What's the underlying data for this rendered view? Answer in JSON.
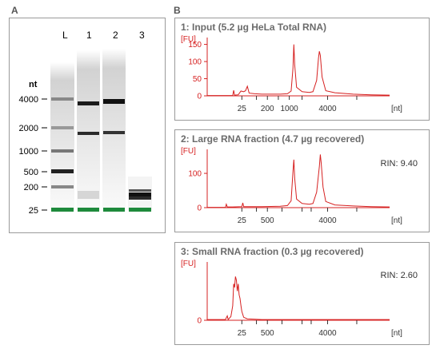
{
  "panels": {
    "a": "A",
    "b": "B"
  },
  "gel": {
    "lanes": [
      "L",
      "1",
      "2",
      "3"
    ],
    "nt_label": "nt",
    "ladder_sizes": [
      "4000",
      "2000",
      "1000",
      "500",
      "200",
      "25"
    ],
    "marker_color": "#1e8a3c"
  },
  "electropherograms": [
    {
      "title": "1: Input (5.2 µg HeLa Total RNA)",
      "rin": ""
    },
    {
      "title": "2: Large RNA fraction (4.7 µg recovered)",
      "rin": "RIN: 9.40"
    },
    {
      "title": "3: Small RNA fraction (0.3 µg recovered)",
      "rin": "RIN: 2.60"
    }
  ],
  "chart_data": [
    {
      "type": "line",
      "title": "1: Input (5.2 µg HeLa Total RNA)",
      "ylabel": "[FU]",
      "xlabel": "[nt]",
      "yticks": [
        0,
        50,
        100,
        150
      ],
      "xticks": [
        "25",
        "200",
        "1000",
        "4000"
      ],
      "ylim": [
        0,
        170
      ],
      "color": "#d62020",
      "series": [
        {
          "points": [
            [
              0.0,
              1
            ],
            [
              0.05,
              1
            ],
            [
              0.14,
              1
            ],
            [
              0.145,
              16
            ],
            [
              0.15,
              2
            ],
            [
              0.17,
              3
            ],
            [
              0.185,
              14
            ],
            [
              0.2,
              12
            ],
            [
              0.21,
              15
            ],
            [
              0.22,
              28
            ],
            [
              0.23,
              8
            ],
            [
              0.26,
              6
            ],
            [
              0.3,
              5
            ],
            [
              0.4,
              5
            ],
            [
              0.44,
              6
            ],
            [
              0.46,
              14
            ],
            [
              0.47,
              80
            ],
            [
              0.475,
              150
            ],
            [
              0.48,
              90
            ],
            [
              0.49,
              25
            ],
            [
              0.52,
              12
            ],
            [
              0.56,
              10
            ],
            [
              0.58,
              12
            ],
            [
              0.6,
              45
            ],
            [
              0.61,
              110
            ],
            [
              0.615,
              130
            ],
            [
              0.62,
              118
            ],
            [
              0.63,
              55
            ],
            [
              0.65,
              15
            ],
            [
              0.7,
              9
            ],
            [
              0.8,
              5
            ],
            [
              0.9,
              3
            ],
            [
              1.0,
              2
            ]
          ]
        }
      ]
    },
    {
      "type": "line",
      "title": "2: Large RNA fraction (4.7 µg recovered)",
      "ylabel": "[FU]",
      "xlabel": "[nt]",
      "yticks": [
        0,
        100
      ],
      "xticks": [
        "25",
        "500",
        "4000"
      ],
      "ylim": [
        0,
        170
      ],
      "color": "#d62020",
      "series": [
        {
          "points": [
            [
              0.0,
              1
            ],
            [
              0.1,
              1
            ],
            [
              0.105,
              10
            ],
            [
              0.11,
              2
            ],
            [
              0.14,
              2
            ],
            [
              0.19,
              3
            ],
            [
              0.195,
              14
            ],
            [
              0.2,
              3
            ],
            [
              0.3,
              3
            ],
            [
              0.4,
              4
            ],
            [
              0.44,
              6
            ],
            [
              0.46,
              20
            ],
            [
              0.47,
              105
            ],
            [
              0.475,
              140
            ],
            [
              0.48,
              85
            ],
            [
              0.49,
              25
            ],
            [
              0.52,
              12
            ],
            [
              0.56,
              10
            ],
            [
              0.58,
              12
            ],
            [
              0.6,
              45
            ],
            [
              0.615,
              120
            ],
            [
              0.62,
              155
            ],
            [
              0.625,
              130
            ],
            [
              0.635,
              60
            ],
            [
              0.65,
              18
            ],
            [
              0.7,
              8
            ],
            [
              0.8,
              5
            ],
            [
              0.9,
              3
            ],
            [
              1.0,
              2
            ]
          ]
        }
      ]
    },
    {
      "type": "line",
      "title": "3: Small RNA fraction (0.3 µg recovered)",
      "ylabel": "[FU]",
      "xlabel": "[nt]",
      "yticks": [
        0
      ],
      "xticks": [
        "25",
        "500",
        "4000"
      ],
      "ylim": [
        0,
        80
      ],
      "color": "#d62020",
      "series": [
        {
          "points": [
            [
              0.0,
              1
            ],
            [
              0.05,
              1
            ],
            [
              0.1,
              1
            ],
            [
              0.11,
              6
            ],
            [
              0.115,
              1
            ],
            [
              0.13,
              5
            ],
            [
              0.14,
              20
            ],
            [
              0.145,
              50
            ],
            [
              0.15,
              45
            ],
            [
              0.155,
              60
            ],
            [
              0.16,
              55
            ],
            [
              0.165,
              40
            ],
            [
              0.17,
              50
            ],
            [
              0.175,
              35
            ],
            [
              0.18,
              30
            ],
            [
              0.185,
              20
            ],
            [
              0.19,
              12
            ],
            [
              0.2,
              4
            ],
            [
              0.22,
              2
            ],
            [
              0.3,
              1
            ],
            [
              0.5,
              1
            ],
            [
              1.0,
              1
            ]
          ]
        }
      ]
    }
  ]
}
